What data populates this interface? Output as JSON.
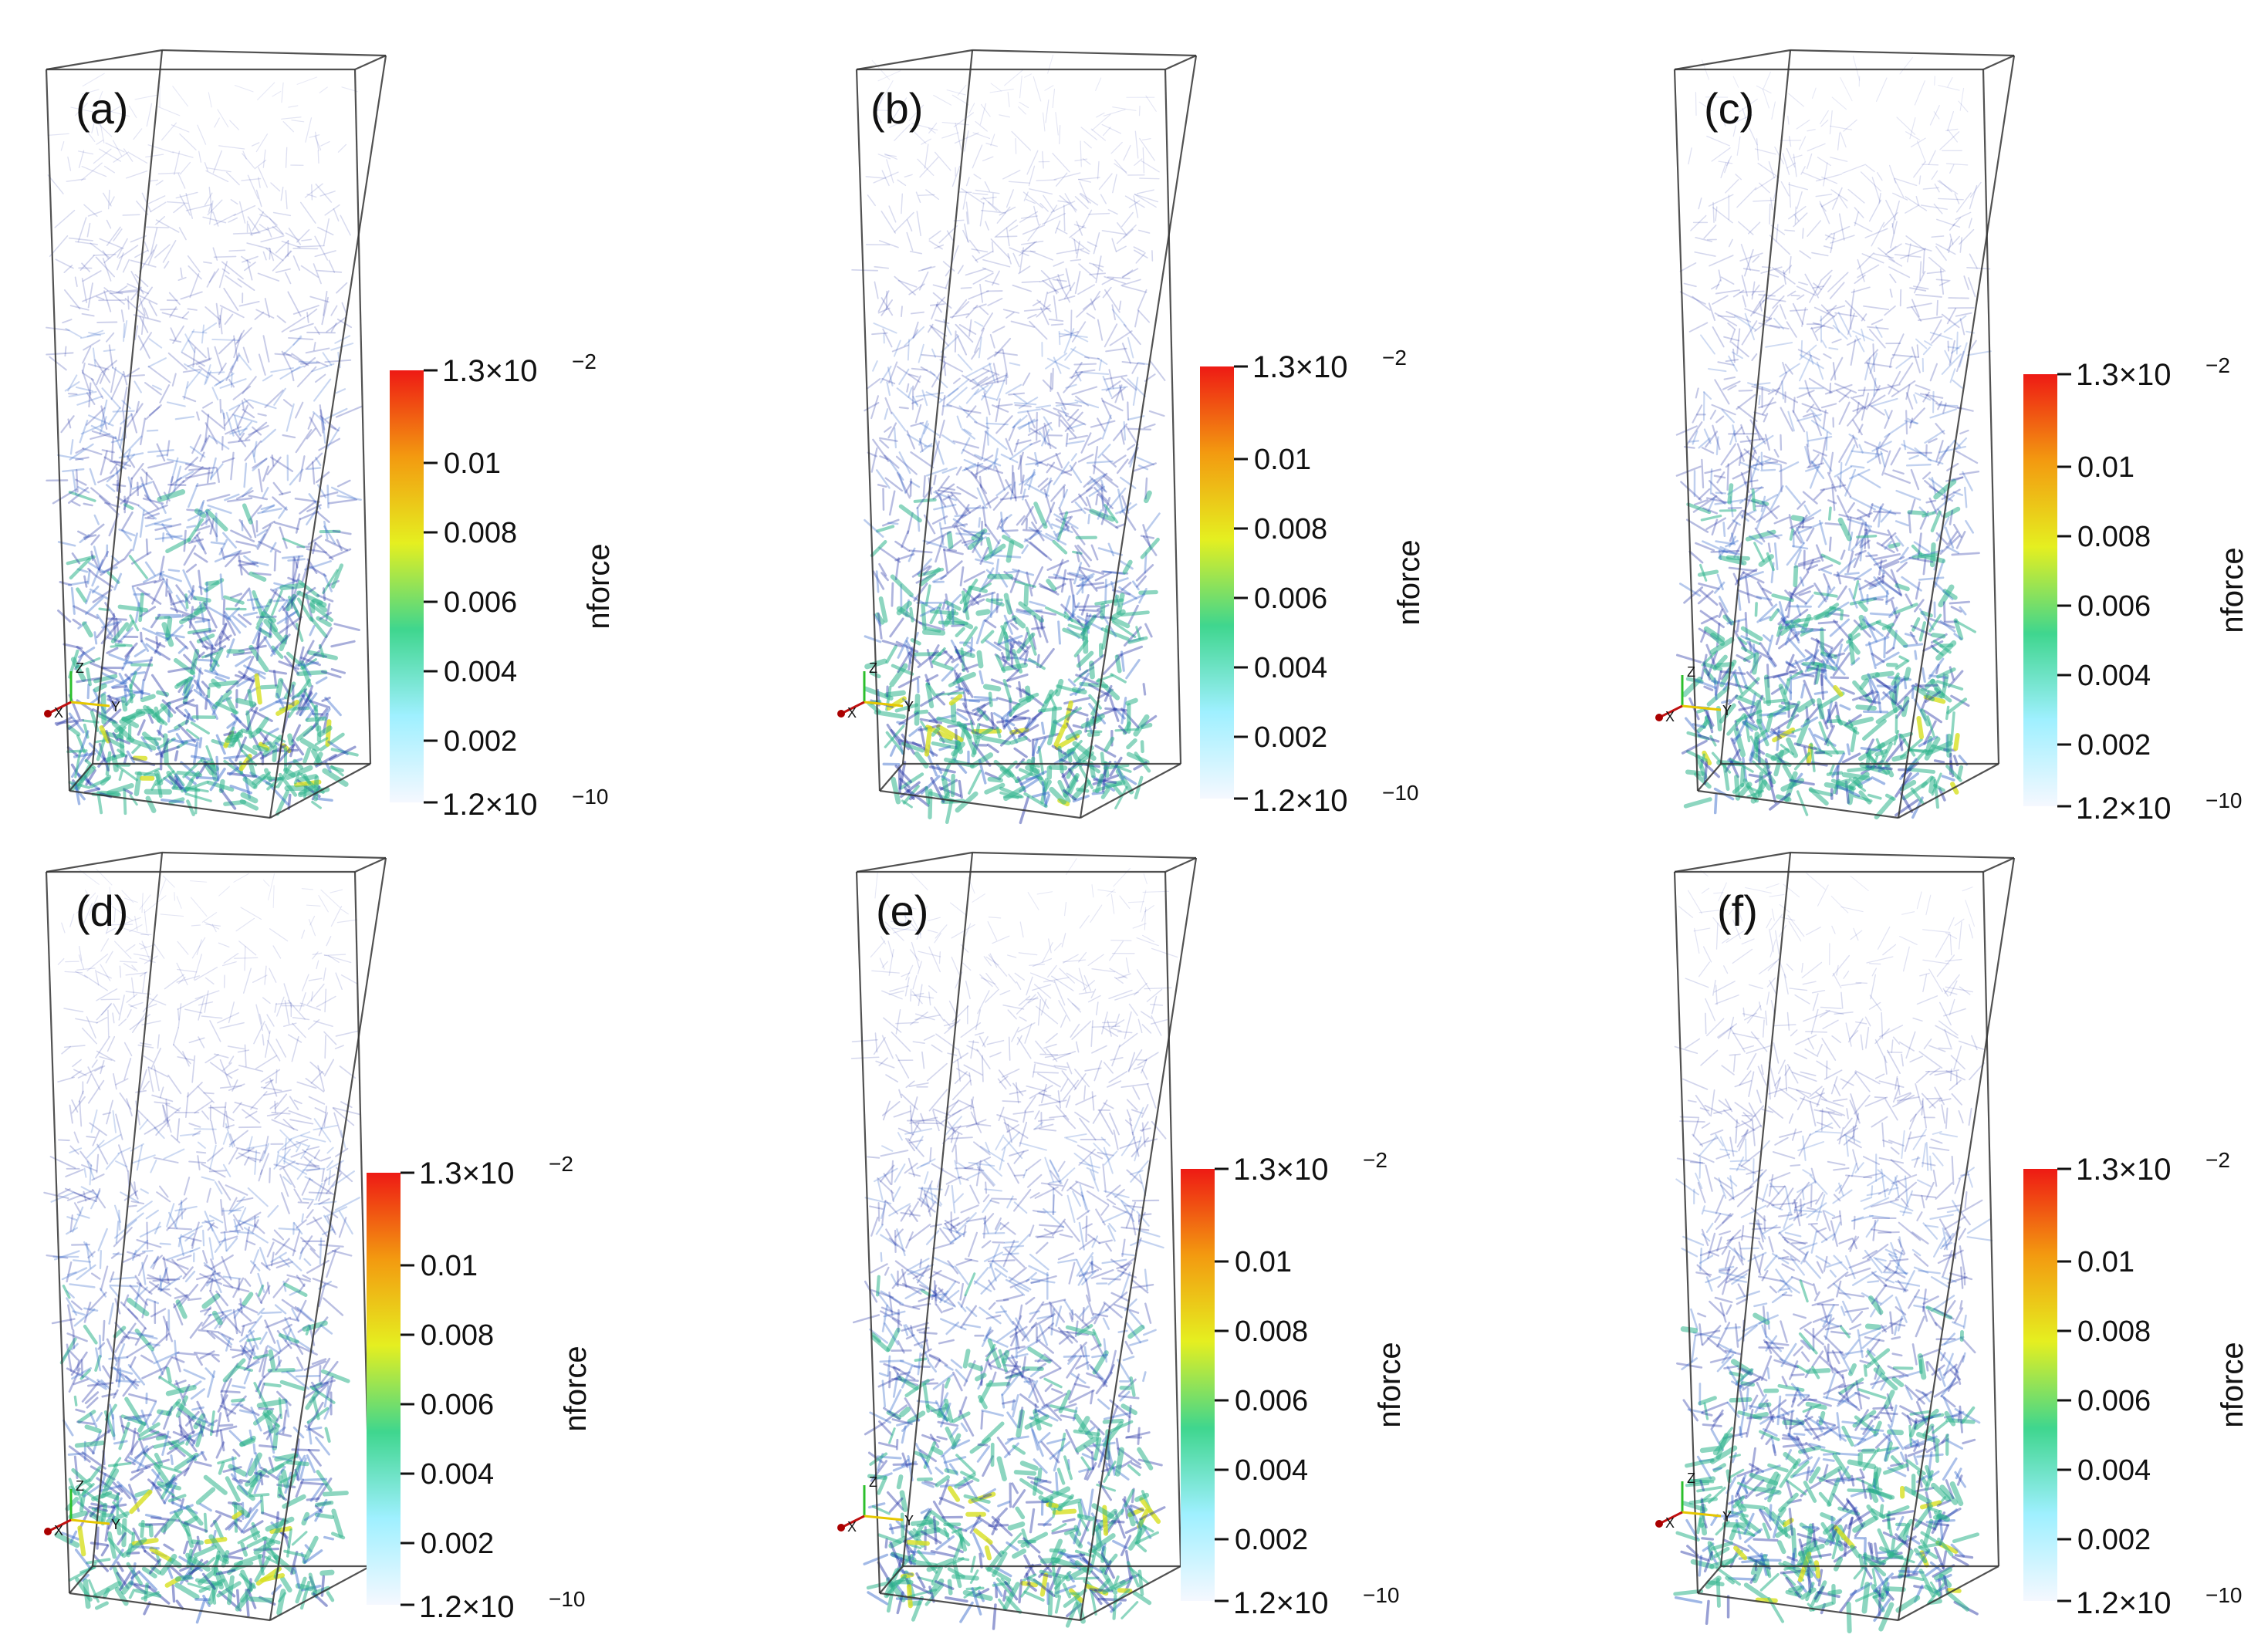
{
  "figure": {
    "colorbar": {
      "title": "nforce",
      "max_label": "1.3×10",
      "max_exp": "−2",
      "min_label": "1.2×10",
      "min_exp": "−10",
      "ticks": [
        "0.01",
        "0.008",
        "0.006",
        "0.004",
        "0.002"
      ],
      "colors": [
        "#f5f8ff",
        "#9ff0ff",
        "#3fd68e",
        "#e5ef20",
        "#f39a10",
        "#ee1a14"
      ]
    },
    "axes_triad": {
      "x": "X",
      "y": "Y",
      "z": "Z"
    },
    "panels": [
      {
        "label": "(a)"
      },
      {
        "label": "(b)"
      },
      {
        "label": "(c)"
      },
      {
        "label": "(d)"
      },
      {
        "label": "(e)"
      },
      {
        "label": "(f)"
      }
    ],
    "palette": {
      "network_dark": "#1a2aa0",
      "network_mid": "#2a60c8",
      "network_green": "#2fb48c",
      "hot": "#d7e020",
      "frame": "#333333"
    }
  }
}
